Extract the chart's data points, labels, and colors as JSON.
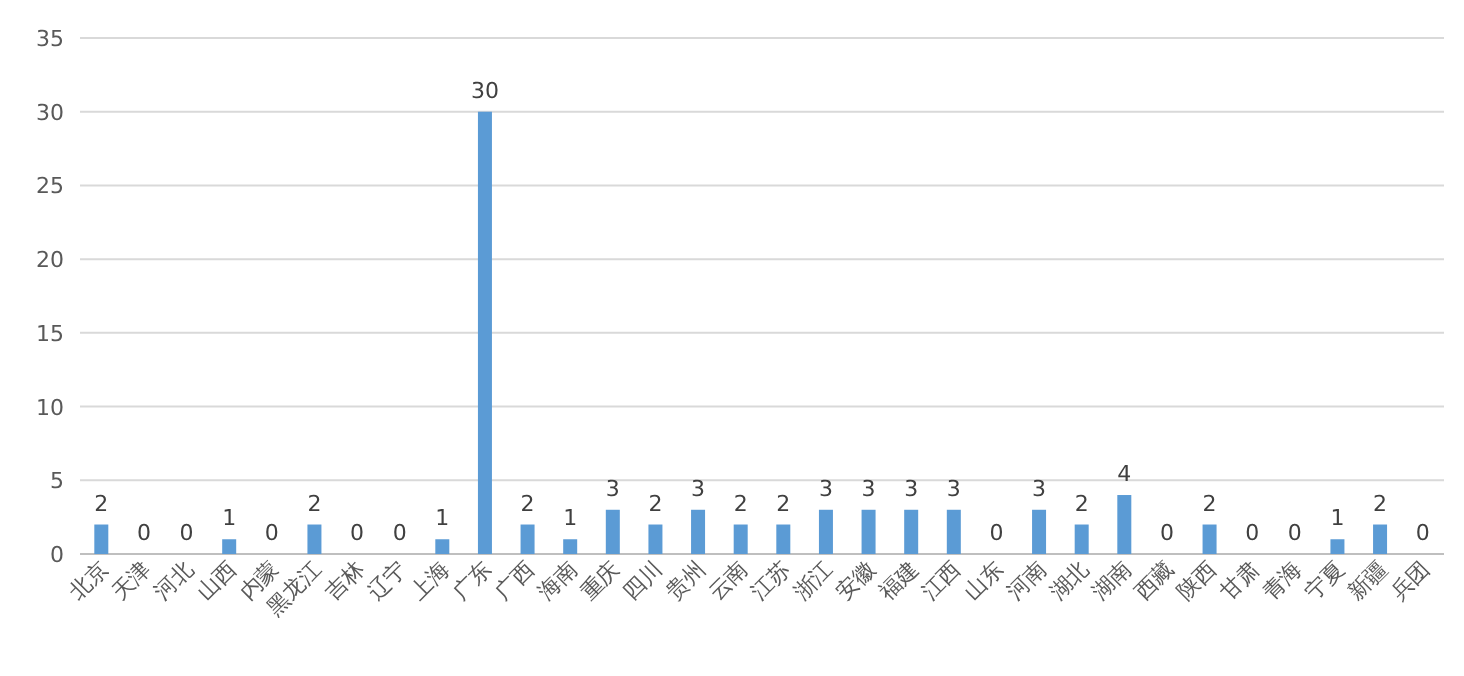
{
  "chart_data": {
    "type": "bar",
    "categories": [
      "北京",
      "天津",
      "河北",
      "山西",
      "内蒙",
      "黑龙江",
      "吉林",
      "辽宁",
      "上海",
      "广东",
      "广西",
      "海南",
      "重庆",
      "四川",
      "贵州",
      "云南",
      "江苏",
      "浙江",
      "安徽",
      "福建",
      "江西",
      "山东",
      "河南",
      "湖北",
      "湖南",
      "西藏",
      "陕西",
      "甘肃",
      "青海",
      "宁夏",
      "新疆",
      "兵团"
    ],
    "values": [
      2,
      0,
      0,
      1,
      0,
      2,
      0,
      0,
      1,
      30,
      2,
      1,
      3,
      2,
      3,
      2,
      2,
      3,
      3,
      3,
      3,
      0,
      3,
      2,
      4,
      0,
      2,
      0,
      0,
      1,
      2,
      0
    ],
    "color": "#5b9bd5",
    "ylim": [
      0,
      35
    ],
    "yticks": [
      0,
      5,
      10,
      15,
      20,
      25,
      30,
      35
    ],
    "grid": "y",
    "data_labels": true
  }
}
